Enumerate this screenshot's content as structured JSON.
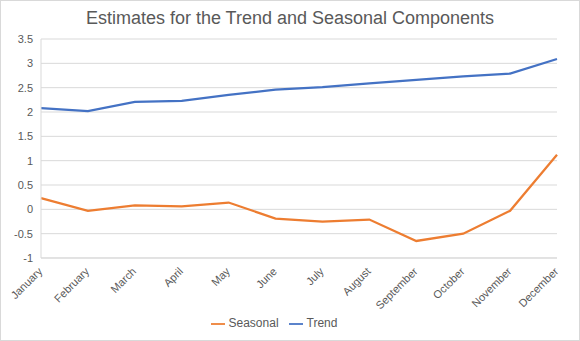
{
  "chart_data": {
    "type": "line",
    "title": "Estimates for the Trend and Seasonal Components",
    "categories": [
      "January",
      "February",
      "March",
      "April",
      "May",
      "June",
      "July",
      "August",
      "September",
      "October",
      "November",
      "December"
    ],
    "series": [
      {
        "name": "Trend",
        "color": "#4472c4",
        "values": [
          2.08,
          2.02,
          2.21,
          2.23,
          2.35,
          2.46,
          2.51,
          2.59,
          2.66,
          2.73,
          2.79,
          3.09
        ]
      },
      {
        "name": "Seasonal",
        "color": "#ed7d31",
        "values": [
          0.23,
          -0.03,
          0.08,
          0.06,
          0.14,
          -0.19,
          -0.25,
          -0.21,
          -0.65,
          -0.5,
          -0.03,
          1.12
        ]
      }
    ],
    "ylim": [
      -1,
      3.5
    ],
    "yticks": [
      -1,
      -0.5,
      0,
      0.5,
      1,
      1.5,
      2,
      2.5,
      3,
      3.5
    ],
    "grid": true,
    "legend": "bottom",
    "marker": "none"
  }
}
